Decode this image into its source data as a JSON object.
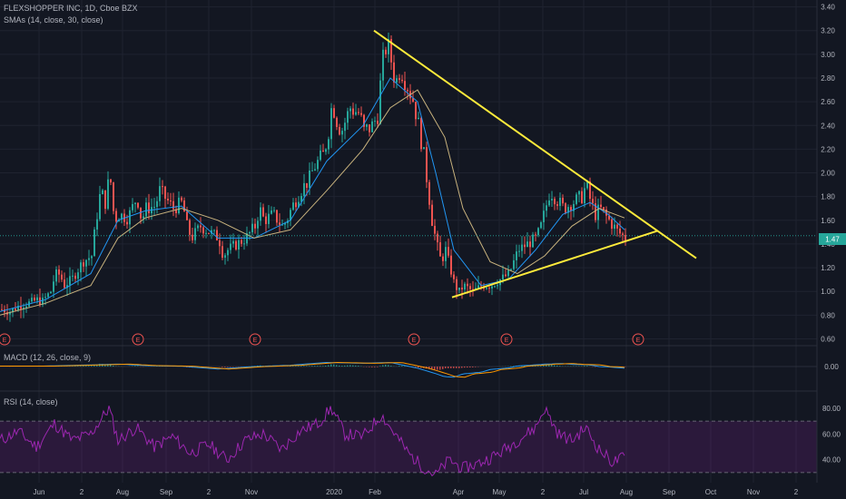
{
  "header": {
    "symbol_line": "FLEXSHOPPER INC, 1D, Cboe BZX",
    "sma_line": "SMAs (14, close, 30, close)",
    "macd_line": "MACD (12, 26, close, 9)",
    "rsi_line": "RSI (14, close)"
  },
  "price_label": "1.47",
  "colors": {
    "background": "#131722",
    "up": "#26a69a",
    "down": "#ef5350",
    "sma14": "#2196f3",
    "sma30": "#c9b37e",
    "trendline": "#ffeb3b",
    "rsi": "#9c27b0",
    "macd_signal": "#ff9800"
  },
  "earnings_marker": "E",
  "chart_data": [
    {
      "type": "candlestick",
      "title": "FLEXSHOPPER INC, 1D, Cboe BZX",
      "x_ticks": [
        "Jun",
        "2",
        "Aug",
        "Sep",
        "2",
        "Nov",
        "2020",
        "Feb",
        "Apr",
        "May",
        "2",
        "Jul",
        "Aug",
        "Sep",
        "Oct",
        "Nov",
        "2"
      ],
      "y_ticks": [
        "0.60",
        "0.80",
        "1.00",
        "1.20",
        "1.40",
        "1.60",
        "1.80",
        "2.00",
        "2.20",
        "2.40",
        "2.60",
        "2.80",
        "3.00",
        "3.20",
        "3.40"
      ],
      "ylim": [
        0.55,
        3.42
      ],
      "last_price": 1.47,
      "close_path": [
        [
          0,
          0.85
        ],
        [
          10,
          0.83
        ],
        [
          20,
          0.88
        ],
        [
          30,
          0.9
        ],
        [
          40,
          0.93
        ],
        [
          45,
          0.91
        ],
        [
          55,
          1.0
        ],
        [
          60,
          1.15
        ],
        [
          65,
          1.14
        ],
        [
          70,
          1.05
        ],
        [
          80,
          1.12
        ],
        [
          90,
          1.25
        ],
        [
          100,
          1.3
        ],
        [
          105,
          1.6
        ],
        [
          110,
          1.85
        ],
        [
          115,
          1.75
        ],
        [
          120,
          2.0
        ],
        [
          125,
          1.6
        ],
        [
          130,
          1.65
        ],
        [
          140,
          1.62
        ],
        [
          150,
          1.8
        ],
        [
          155,
          1.6
        ],
        [
          160,
          1.7
        ],
        [
          170,
          1.72
        ],
        [
          175,
          1.85
        ],
        [
          180,
          1.8
        ],
        [
          190,
          1.7
        ],
        [
          200,
          1.75
        ],
        [
          205,
          1.55
        ],
        [
          210,
          1.45
        ],
        [
          220,
          1.55
        ],
        [
          230,
          1.5
        ],
        [
          240,
          1.45
        ],
        [
          245,
          1.3
        ],
        [
          250,
          1.35
        ],
        [
          260,
          1.4
        ],
        [
          270,
          1.45
        ],
        [
          280,
          1.55
        ],
        [
          285,
          1.7
        ],
        [
          290,
          1.6
        ],
        [
          300,
          1.65
        ],
        [
          310,
          1.55
        ],
        [
          315,
          1.6
        ],
        [
          320,
          1.7
        ],
        [
          330,
          1.85
        ],
        [
          340,
          1.95
        ],
        [
          345,
          2.05
        ],
        [
          355,
          2.15
        ],
        [
          360,
          2.3
        ],
        [
          365,
          2.6
        ],
        [
          370,
          2.45
        ],
        [
          375,
          2.35
        ],
        [
          385,
          2.55
        ],
        [
          395,
          2.5
        ],
        [
          400,
          2.35
        ],
        [
          410,
          2.4
        ],
        [
          415,
          2.5
        ],
        [
          420,
          2.9
        ],
        [
          425,
          3.1
        ],
        [
          430,
          2.95
        ],
        [
          435,
          2.75
        ],
        [
          440,
          2.9
        ],
        [
          445,
          2.8
        ],
        [
          450,
          2.7
        ],
        [
          455,
          2.6
        ],
        [
          460,
          2.4
        ],
        [
          465,
          2.2
        ],
        [
          470,
          1.9
        ],
        [
          475,
          1.6
        ],
        [
          480,
          1.4
        ],
        [
          485,
          1.25
        ],
        [
          490,
          1.35
        ],
        [
          495,
          1.2
        ],
        [
          500,
          1.05
        ],
        [
          505,
          1.0
        ],
        [
          510,
          1.05
        ],
        [
          520,
          1.0
        ],
        [
          530,
          1.05
        ],
        [
          540,
          1.05
        ],
        [
          550,
          1.1
        ],
        [
          560,
          1.15
        ],
        [
          570,
          1.35
        ],
        [
          580,
          1.4
        ],
        [
          590,
          1.45
        ],
        [
          595,
          1.55
        ],
        [
          600,
          1.7
        ],
        [
          605,
          1.85
        ],
        [
          610,
          1.8
        ],
        [
          620,
          1.7
        ],
        [
          630,
          1.75
        ],
        [
          640,
          1.8
        ],
        [
          645,
          1.9
        ],
        [
          650,
          1.75
        ],
        [
          655,
          1.65
        ],
        [
          660,
          1.7
        ],
        [
          670,
          1.6
        ],
        [
          680,
          1.5
        ],
        [
          688,
          1.45
        ]
      ],
      "sma14_path": [
        [
          0,
          0.83
        ],
        [
          50,
          0.93
        ],
        [
          100,
          1.15
        ],
        [
          130,
          1.6
        ],
        [
          160,
          1.68
        ],
        [
          200,
          1.72
        ],
        [
          240,
          1.45
        ],
        [
          280,
          1.45
        ],
        [
          320,
          1.6
        ],
        [
          360,
          2.1
        ],
        [
          400,
          2.4
        ],
        [
          430,
          2.8
        ],
        [
          460,
          2.6
        ],
        [
          480,
          2.0
        ],
        [
          500,
          1.35
        ],
        [
          530,
          1.05
        ],
        [
          560,
          1.1
        ],
        [
          590,
          1.35
        ],
        [
          620,
          1.65
        ],
        [
          650,
          1.75
        ],
        [
          670,
          1.65
        ],
        [
          688,
          1.52
        ]
      ],
      "sma30_path": [
        [
          0,
          0.8
        ],
        [
          50,
          0.9
        ],
        [
          100,
          1.05
        ],
        [
          130,
          1.45
        ],
        [
          160,
          1.62
        ],
        [
          200,
          1.7
        ],
        [
          240,
          1.6
        ],
        [
          280,
          1.45
        ],
        [
          320,
          1.52
        ],
        [
          360,
          1.85
        ],
        [
          400,
          2.2
        ],
        [
          430,
          2.55
        ],
        [
          460,
          2.7
        ],
        [
          490,
          2.3
        ],
        [
          510,
          1.7
        ],
        [
          540,
          1.25
        ],
        [
          570,
          1.15
        ],
        [
          600,
          1.3
        ],
        [
          630,
          1.55
        ],
        [
          660,
          1.7
        ],
        [
          688,
          1.62
        ]
      ],
      "trendlines": [
        {
          "from": [
            412,
            3.2
          ],
          "to": [
            767,
            1.28
          ]
        },
        {
          "from": [
            498,
            0.95
          ],
          "to": [
            724,
            1.51
          ]
        }
      ],
      "earnings_x": [
        5,
        152,
        281,
        456,
        558,
        703
      ]
    },
    {
      "type": "line",
      "title": "MACD (12, 26, close, 9)",
      "y_ticks": [
        "0.00"
      ]
    },
    {
      "type": "line",
      "title": "RSI (14, close)",
      "y_ticks": [
        "40.00",
        "60.00",
        "80.00"
      ],
      "ylim": [
        25,
        87
      ],
      "band": [
        30,
        70
      ],
      "values_path": [
        [
          0,
          55
        ],
        [
          20,
          62
        ],
        [
          40,
          50
        ],
        [
          60,
          68
        ],
        [
          80,
          55
        ],
        [
          100,
          60
        ],
        [
          120,
          80
        ],
        [
          130,
          55
        ],
        [
          150,
          65
        ],
        [
          170,
          50
        ],
        [
          190,
          58
        ],
        [
          210,
          45
        ],
        [
          230,
          52
        ],
        [
          250,
          40
        ],
        [
          270,
          55
        ],
        [
          290,
          60
        ],
        [
          310,
          48
        ],
        [
          330,
          62
        ],
        [
          350,
          68
        ],
        [
          365,
          80
        ],
        [
          380,
          60
        ],
        [
          400,
          58
        ],
        [
          420,
          75
        ],
        [
          435,
          60
        ],
        [
          450,
          45
        ],
        [
          465,
          35
        ],
        [
          480,
          28
        ],
        [
          495,
          40
        ],
        [
          510,
          33
        ],
        [
          530,
          38
        ],
        [
          550,
          45
        ],
        [
          570,
          55
        ],
        [
          590,
          65
        ],
        [
          600,
          80
        ],
        [
          615,
          60
        ],
        [
          630,
          55
        ],
        [
          645,
          65
        ],
        [
          660,
          48
        ],
        [
          675,
          38
        ],
        [
          688,
          42
        ]
      ]
    }
  ]
}
